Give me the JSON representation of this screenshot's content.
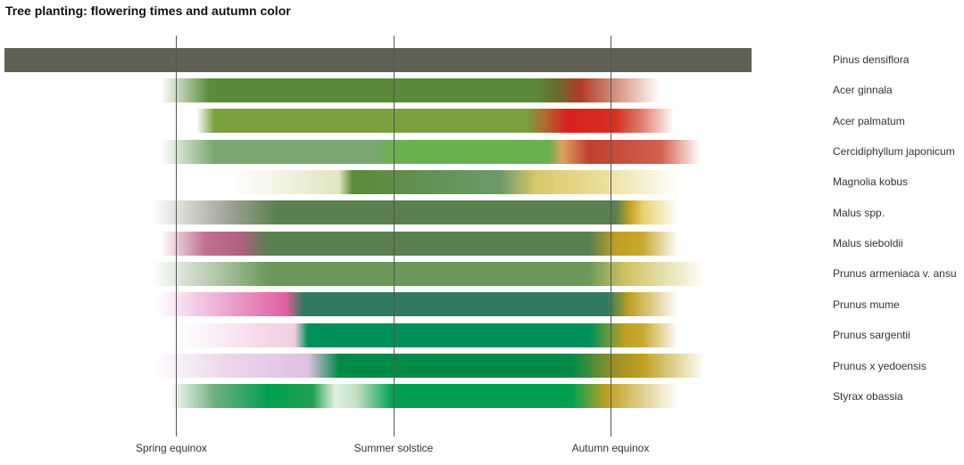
{
  "title": "Tree planting: flowering times and autumn color",
  "markers": [
    {
      "label": "Spring equinox"
    },
    {
      "label": "Summer solstice"
    },
    {
      "label": "Autumn equinox"
    }
  ],
  "rows": [
    {
      "name": "Pinus densiflora"
    },
    {
      "name": "Acer ginnala"
    },
    {
      "name": "Acer palmatum"
    },
    {
      "name": "Cercidiphyllum japonicum"
    },
    {
      "name": "Magnolia kobus"
    },
    {
      "name": "Malus spp."
    },
    {
      "name": "Malus sieboldii"
    },
    {
      "name": "Prunus armeniaca v. ansu"
    },
    {
      "name": "Prunus mume"
    },
    {
      "name": "Prunus sargentii"
    },
    {
      "name": "Prunus x yedoensis"
    },
    {
      "name": "Styrax obassia"
    }
  ]
}
